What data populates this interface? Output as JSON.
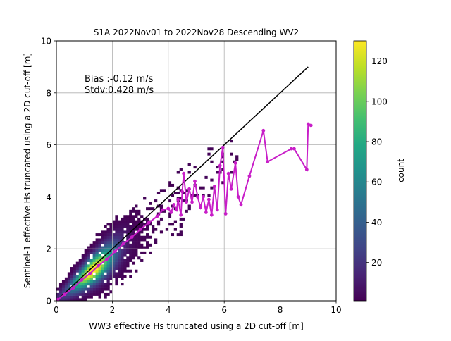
{
  "chart_data": {
    "type": "heatmap",
    "title": "S1A 2022Nov01 to 2022Nov28 Descending WV2",
    "xlabel": "WW3 effective Hs truncated using a 2D cut-off [m]",
    "ylabel": "Sentinel-1 effective Hs truncated using a 2D cut-off [m]",
    "xlim": [
      0,
      10
    ],
    "ylim": [
      0,
      10
    ],
    "xticks": [
      "0",
      "2",
      "4",
      "6",
      "8",
      "10"
    ],
    "yticks": [
      "0",
      "2",
      "4",
      "6",
      "8",
      "10"
    ],
    "grid": true,
    "annotations": [
      "Bias :-0.12 m/s",
      "Stdv:0.428 m/s"
    ],
    "colorbar": {
      "label": "count",
      "range": [
        1,
        130
      ],
      "ticks": [
        "20",
        "40",
        "60",
        "80",
        "100",
        "120"
      ],
      "colormap": "viridis"
    },
    "identity_line": {
      "x": [
        0,
        9
      ],
      "y": [
        0,
        9
      ],
      "color": "#000000"
    },
    "mean_curve": {
      "color": "#c81ec8",
      "points": [
        [
          0.05,
          0.05
        ],
        [
          0.3,
          0.25
        ],
        [
          0.6,
          0.5
        ],
        [
          0.9,
          0.8
        ],
        [
          1.2,
          1.05
        ],
        [
          1.5,
          1.35
        ],
        [
          1.8,
          1.6
        ],
        [
          2.1,
          1.9
        ],
        [
          2.4,
          2.2
        ],
        [
          2.7,
          2.45
        ],
        [
          3.0,
          2.75
        ],
        [
          3.3,
          3.0
        ],
        [
          3.6,
          3.25
        ],
        [
          3.8,
          3.5
        ],
        [
          4.0,
          3.55
        ],
        [
          4.1,
          3.4
        ],
        [
          4.2,
          3.7
        ],
        [
          4.3,
          3.5
        ],
        [
          4.35,
          3.9
        ],
        [
          4.45,
          3.3
        ],
        [
          4.5,
          4.2
        ],
        [
          4.55,
          4.9
        ],
        [
          4.65,
          3.8
        ],
        [
          4.75,
          4.3
        ],
        [
          4.85,
          3.8
        ],
        [
          4.95,
          4.6
        ],
        [
          5.05,
          4.0
        ],
        [
          5.15,
          3.6
        ],
        [
          5.25,
          4.0
        ],
        [
          5.35,
          3.4
        ],
        [
          5.45,
          3.9
        ],
        [
          5.55,
          3.3
        ],
        [
          5.65,
          4.4
        ],
        [
          5.75,
          3.5
        ],
        [
          5.85,
          5.2
        ],
        [
          5.95,
          5.9
        ],
        [
          6.05,
          3.35
        ],
        [
          6.15,
          4.9
        ],
        [
          6.25,
          4.3
        ],
        [
          6.4,
          5.3
        ],
        [
          6.5,
          4.0
        ],
        [
          6.6,
          3.7
        ],
        [
          6.9,
          4.8
        ],
        [
          7.4,
          6.55
        ],
        [
          7.55,
          5.35
        ],
        [
          8.4,
          5.85
        ],
        [
          8.5,
          5.85
        ],
        [
          8.95,
          5.05
        ],
        [
          9.0,
          6.8
        ],
        [
          9.1,
          6.75
        ]
      ]
    }
  }
}
